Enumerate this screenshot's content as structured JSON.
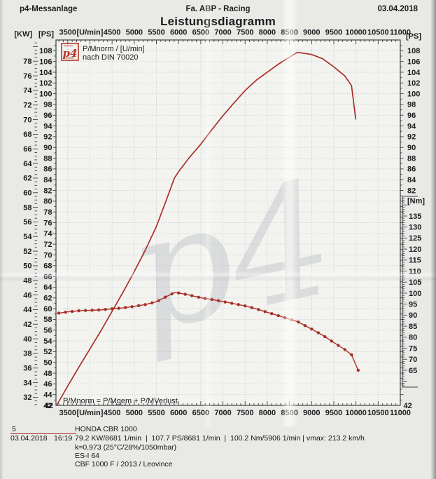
{
  "header": {
    "left": "p4-Messanlage",
    "center": "Fa. ABP - Racing",
    "right": "03.04.2018",
    "title": "Leistungsdiagramm"
  },
  "footer": {
    "page_number": "5",
    "model": "HONDA CBR 1000",
    "date": "03.04.2018",
    "time": "16:19",
    "results": "79.2 KW/8681 1/min  |  107.7 PS/8681 1/min  |  100.2 Nm/5906 1/min | vmax: 213.2 km/h",
    "correction": "k=0,973 (25°C/28%/1050mbar)",
    "operator": "ES-I 64",
    "exhaust": "CBF 1000 F / 2013 / Leovince"
  },
  "chart_data": {
    "type": "line",
    "title": "Leistungsdiagramm",
    "x_axis": {
      "tick_values": [
        3500,
        4000,
        4500,
        5000,
        5500,
        6000,
        6500,
        7000,
        7500,
        8000,
        8500,
        9000,
        9500,
        10000,
        10500,
        11000
      ],
      "tick_labels": [
        "3500",
        "[U/min]",
        "4500",
        "5000",
        "5500",
        "6000",
        "6500",
        "7000",
        "7500",
        "8000",
        "8500",
        "9000",
        "9500",
        "10000",
        "10500",
        "11000"
      ],
      "range": [
        3235,
        11000
      ],
      "gridline_step": 500,
      "minor_tick_step": 100
    },
    "y_axis_ps": {
      "unit": "[PS]",
      "range": [
        42,
        110
      ],
      "label_min": 42,
      "label_max": 108,
      "label_step": 2,
      "right_label_min": 82,
      "corner_label": "42"
    },
    "y_axis_kw": {
      "unit": "[KW]",
      "label_min": 32,
      "label_max": 78,
      "label_step": 2,
      "kw_per_ps": 0.7355
    },
    "y_axis_nm": {
      "unit": "[Nm]",
      "label_min": 65,
      "label_max": 135,
      "label_step": 5,
      "ps_equiv_at_65": 48.53,
      "ps_equiv_at_135": 77.24
    },
    "series": [
      {
        "name": "power",
        "unit": "PS",
        "style": "line",
        "points": [
          [
            3250,
            42.0
          ],
          [
            3500,
            45.6
          ],
          [
            3750,
            49.1
          ],
          [
            4000,
            52.5
          ],
          [
            4250,
            55.9
          ],
          [
            4500,
            59.5
          ],
          [
            4750,
            63.1
          ],
          [
            5000,
            66.9
          ],
          [
            5250,
            70.9
          ],
          [
            5500,
            75.3
          ],
          [
            5750,
            80.8
          ],
          [
            5906,
            84.3
          ],
          [
            6000,
            85.5
          ],
          [
            6250,
            88.2
          ],
          [
            6500,
            90.6
          ],
          [
            6750,
            93.3
          ],
          [
            7000,
            95.9
          ],
          [
            7250,
            98.3
          ],
          [
            7500,
            100.6
          ],
          [
            7750,
            102.5
          ],
          [
            8000,
            104.0
          ],
          [
            8250,
            105.5
          ],
          [
            8500,
            106.8
          ],
          [
            8681,
            107.7
          ],
          [
            9000,
            107.3
          ],
          [
            9250,
            106.5
          ],
          [
            9500,
            105.0
          ],
          [
            9750,
            103.3
          ],
          [
            9900,
            101.5
          ],
          [
            9995,
            95.2
          ]
        ]
      },
      {
        "name": "torque",
        "unit": "Nm",
        "style": "line+markers",
        "points": [
          [
            3250,
            90.8
          ],
          [
            3500,
            91.5
          ],
          [
            3750,
            92.0
          ],
          [
            4000,
            92.2
          ],
          [
            4250,
            92.4
          ],
          [
            4500,
            92.9
          ],
          [
            4750,
            93.3
          ],
          [
            5000,
            94.0
          ],
          [
            5250,
            94.8
          ],
          [
            5500,
            96.1
          ],
          [
            5750,
            98.7
          ],
          [
            5906,
            100.2
          ],
          [
            6000,
            100.1
          ],
          [
            6250,
            99.1
          ],
          [
            6500,
            97.9
          ],
          [
            6750,
            97.1
          ],
          [
            7000,
            96.2
          ],
          [
            7250,
            95.2
          ],
          [
            7500,
            94.2
          ],
          [
            7750,
            92.9
          ],
          [
            8000,
            91.3
          ],
          [
            8250,
            89.8
          ],
          [
            8500,
            88.2
          ],
          [
            8681,
            87.1
          ],
          [
            9000,
            83.7
          ],
          [
            9250,
            80.9
          ],
          [
            9500,
            77.6
          ],
          [
            9750,
            74.4
          ],
          [
            9900,
            72.0
          ],
          [
            10050,
            65.0
          ]
        ]
      }
    ],
    "peaks": {
      "power_kw": "79.2 KW/8681 1/min",
      "power_ps": "107.7 PS/8681 1/min",
      "torque": "100.2 Nm/5906 1/min",
      "vmax": "213.2 km/h"
    },
    "legend": {
      "logo": "p4",
      "line1": "P/Mnorm / [U/min]",
      "line2": "nach DIN 70020"
    },
    "annotation": "P/Mnorm = P/Mgem + P/MVerlust",
    "watermark": "p4",
    "colors": {
      "curve": "#a93028",
      "grid": "#bfc3cd",
      "axis": "#3e4044",
      "text": "#1b1c1e",
      "logo_red": "#b3392b",
      "watermark": "#9aa0ad"
    }
  }
}
